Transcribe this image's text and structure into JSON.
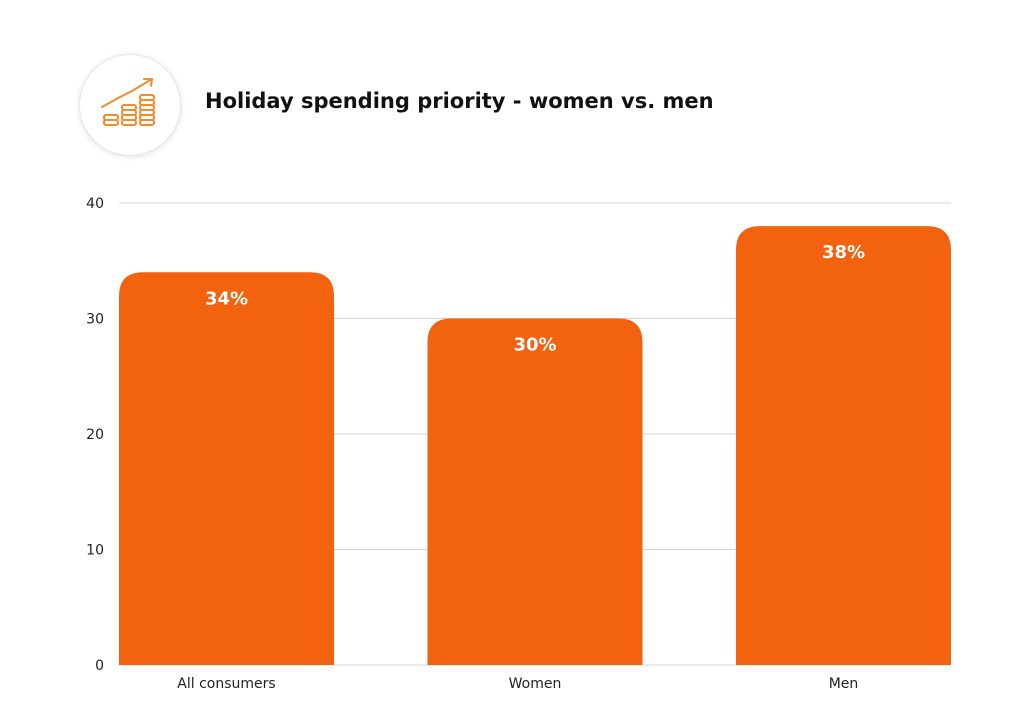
{
  "header": {
    "title": "Holiday spending priority - women vs. men",
    "icon": "rising-coins-chart-icon"
  },
  "colors": {
    "bar": "#f2620f",
    "icon": "#f28a2e",
    "grid": "#d4d4d4"
  },
  "chart_data": {
    "type": "bar",
    "title": "Holiday spending priority - women vs. men",
    "xlabel": "",
    "ylabel": "",
    "categories": [
      "All consumers",
      "Women",
      "Men"
    ],
    "values": [
      34,
      30,
      38
    ],
    "data_labels": [
      "34%",
      "30%",
      "38%"
    ],
    "ylim": [
      0,
      40
    ],
    "yticks": [
      0,
      10,
      20,
      30,
      40
    ],
    "grid": true,
    "legend": "none"
  }
}
